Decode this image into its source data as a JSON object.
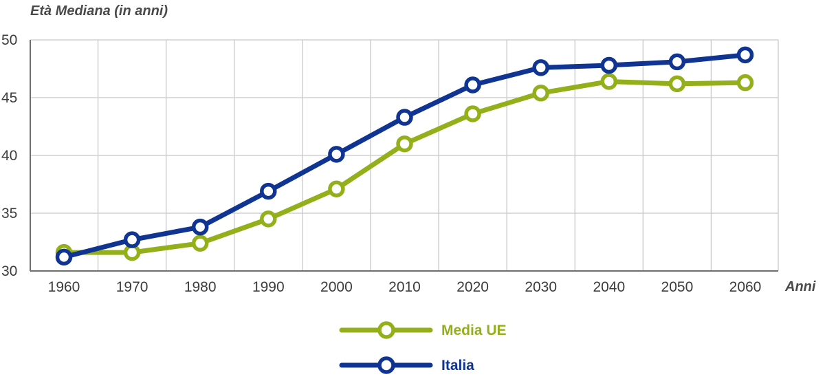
{
  "chart_data": {
    "type": "line",
    "ylabel": "Età Mediana (in anni)",
    "xlabel": "Anni",
    "x": [
      1960,
      1970,
      1980,
      1990,
      2000,
      2010,
      2020,
      2030,
      2040,
      2050,
      2060
    ],
    "x_tick_labels": [
      "1960",
      "1970",
      "1980",
      "1990",
      "2000",
      "2010",
      "2020",
      "2030",
      "2040",
      "2050",
      "2060"
    ],
    "ylim": [
      30,
      50
    ],
    "y_ticks": [
      30,
      35,
      40,
      45,
      50
    ],
    "y_tick_labels": [
      "30",
      "35",
      "40",
      "45",
      "50"
    ],
    "grid": true,
    "legend_position": "bottom-center",
    "series": [
      {
        "name": "Media UE",
        "color": "#93b01a",
        "values": [
          31.6,
          31.6,
          32.4,
          34.5,
          37.1,
          41.0,
          43.6,
          45.4,
          46.4,
          46.2,
          46.3
        ]
      },
      {
        "name": "Italia",
        "color": "#0f3491",
        "values": [
          31.2,
          32.7,
          33.8,
          36.9,
          40.1,
          43.3,
          46.1,
          47.6,
          47.8,
          48.1,
          48.7
        ]
      }
    ]
  }
}
